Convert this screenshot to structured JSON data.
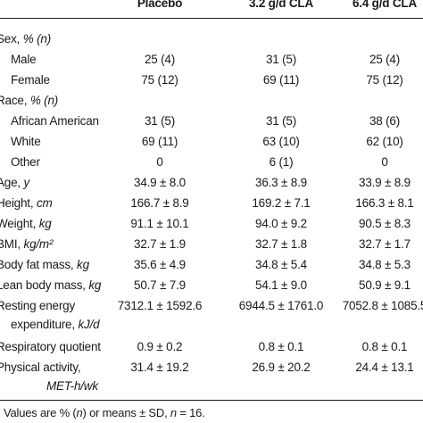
{
  "header": {
    "col1": "Placebo",
    "col2": "3.2 g/d CLA",
    "col3": "6.4 g/d CLA"
  },
  "rows": [
    {
      "label": "Sex, ",
      "unit": "% (n)",
      "v1": "",
      "v2": "",
      "v3": ""
    },
    {
      "label": "Male",
      "unit": "",
      "v1": "25 (4)",
      "v2": "31 (5)",
      "v3": "25 (4)"
    },
    {
      "label": "Female",
      "unit": "",
      "v1": "75 (12)",
      "v2": "69 (11)",
      "v3": "75 (12)"
    },
    {
      "label": "Race, ",
      "unit": "% (n)",
      "v1": "",
      "v2": "",
      "v3": ""
    },
    {
      "label": "African American",
      "unit": "",
      "v1": "31 (5)",
      "v2": "31 (5)",
      "v3": "38 (6)"
    },
    {
      "label": "White",
      "unit": "",
      "v1": "69 (11)",
      "v2": "63 (10)",
      "v3": "62 (10)"
    },
    {
      "label": "Other",
      "unit": "",
      "v1": "0",
      "v2": "6 (1)",
      "v3": "0"
    },
    {
      "label": "Age, ",
      "unit": "y",
      "v1": "34.9 ± 8.0",
      "v2": "36.3 ± 8.9",
      "v3": "33.9 ± 8.9"
    },
    {
      "label": "Height, ",
      "unit": "cm",
      "v1": "166.7 ± 8.9",
      "v2": "169.2 ± 7.1",
      "v3": "166.3 ± 8.1"
    },
    {
      "label": "Weight, ",
      "unit": "kg",
      "v1": "91.1 ± 10.1",
      "v2": "94.0 ± 9.2",
      "v3": "90.5 ± 8.3"
    },
    {
      "label": "BMI, ",
      "unit": "kg/m²",
      "v1": "32.7 ± 1.9",
      "v2": "32.7 ± 1.8",
      "v3": "32.7 ± 1.7"
    },
    {
      "label": "Body fat mass, ",
      "unit": "kg",
      "v1": "35.6 ± 4.9",
      "v2": "34.8 ± 5.4",
      "v3": "34.8 ± 5.3"
    },
    {
      "label": "Lean body mass, ",
      "unit": "kg",
      "v1": "50.7 ± 7.9",
      "v2": "54.1 ± 9.0",
      "v3": "50.9 ± 9.1"
    },
    {
      "label": "Resting energy",
      "unit": "",
      "v1": "7312.1 ± 1592.6",
      "v2": "6944.5 ± 1761.0",
      "v3": "7052.8 ± 1085.5"
    },
    {
      "label": "expenditure, ",
      "unit": "kJ/d",
      "v1": "",
      "v2": "",
      "v3": ""
    },
    {
      "label": "Respiratory quotient",
      "unit": "",
      "v1": "0.9 ± 0.2",
      "v2": "0.8 ± 0.1",
      "v3": "0.8 ± 0.1"
    },
    {
      "label": "Physical activity,",
      "unit": "",
      "v1": "31.4 ± 19.2",
      "v2": "26.9 ± 20.2",
      "v3": "24.4 ± 13.1"
    },
    {
      "label": "",
      "unit": "MET-h/wk",
      "v1": "",
      "v2": "",
      "v3": ""
    }
  ],
  "footnote": {
    "pre": "Values are % (",
    "n1": "n",
    "mid": ") or means ± SD, ",
    "n2": "n",
    "post": " = 16."
  }
}
